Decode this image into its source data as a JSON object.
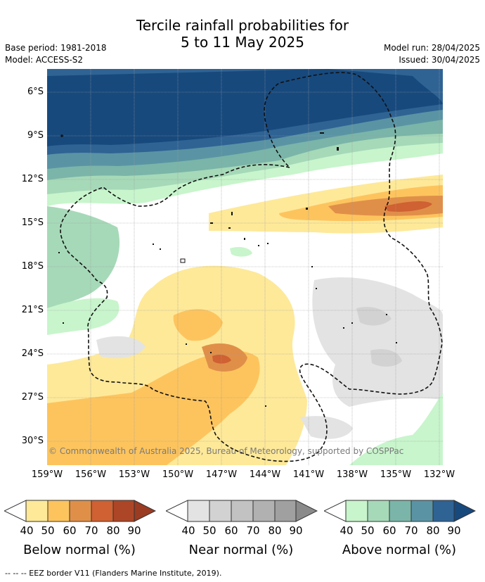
{
  "title": {
    "line1": "Tercile rainfall probabilities for",
    "line2": "5 to 11 May 2025"
  },
  "meta": {
    "base_period": "Base period: 1981-2018",
    "model": "Model: ACCESS-S2",
    "model_run": "Model run: 28/04/2025",
    "issued": "Issued: 30/04/2025"
  },
  "axes": {
    "lat_labels": [
      "6°S",
      "9°S",
      "12°S",
      "15°S",
      "18°S",
      "21°S",
      "24°S",
      "27°S",
      "30°S"
    ],
    "lon_labels": [
      "159°W",
      "156°W",
      "153°W",
      "150°W",
      "147°W",
      "144°W",
      "141°W",
      "138°W",
      "135°W",
      "132°W"
    ],
    "grid": true
  },
  "copyright": "© Commonwealth of Australia 2025, Bureau of Meteorology, supported by COSPPac",
  "legends": [
    {
      "label": "Below normal (%)",
      "ticks": [
        "40",
        "50",
        "60",
        "70",
        "80",
        "90"
      ],
      "colors": [
        "#fee999",
        "#fdc45e",
        "#e08f49",
        "#cf6132",
        "#ad4626",
        "#ad4626"
      ]
    },
    {
      "label": "Near normal (%)",
      "ticks": [
        "40",
        "50",
        "60",
        "70",
        "80",
        "90"
      ],
      "colors": [
        "#e3e3e3",
        "#d2d2d2",
        "#c2c2c2",
        "#b1b1b1",
        "#a0a0a0",
        "#8a8a8a"
      ]
    },
    {
      "label": "Above normal (%)",
      "ticks": [
        "40",
        "50",
        "60",
        "70",
        "80",
        "90"
      ],
      "colors": [
        "#c8f5cc",
        "#a6d9b8",
        "#7bb5a9",
        "#5a94a4",
        "#2f6394",
        "#17497d"
      ]
    }
  ],
  "footer": "--  --  -- EEZ border V11 (Flanders Marine Institute, 2019)."
}
